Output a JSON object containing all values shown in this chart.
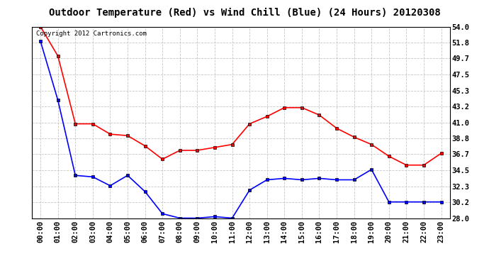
{
  "title": "Outdoor Temperature (Red) vs Wind Chill (Blue) (24 Hours) 20120308",
  "copyright_text": "Copyright 2012 Cartronics.com",
  "x_labels": [
    "00:00",
    "01:00",
    "02:00",
    "03:00",
    "04:00",
    "05:00",
    "06:00",
    "07:00",
    "08:00",
    "09:00",
    "10:00",
    "11:00",
    "12:00",
    "13:00",
    "14:00",
    "15:00",
    "16:00",
    "17:00",
    "18:00",
    "19:00",
    "20:00",
    "21:00",
    "22:00",
    "23:00"
  ],
  "temp_red": [
    54.0,
    50.0,
    40.8,
    40.8,
    39.4,
    39.2,
    37.8,
    36.0,
    37.2,
    37.2,
    37.6,
    38.0,
    40.8,
    41.8,
    43.0,
    43.0,
    42.0,
    40.2,
    39.0,
    38.0,
    36.4,
    35.2,
    35.2,
    36.8
  ],
  "wind_chill_blue": [
    52.0,
    44.0,
    33.8,
    33.6,
    32.4,
    33.8,
    31.6,
    28.6,
    28.0,
    28.0,
    28.2,
    28.0,
    31.8,
    33.2,
    33.4,
    33.2,
    33.4,
    33.2,
    33.2,
    34.6,
    30.2,
    30.2,
    30.2,
    30.2
  ],
  "ylim": [
    28.0,
    54.0
  ],
  "yticks": [
    28.0,
    30.2,
    32.3,
    34.5,
    36.7,
    38.8,
    41.0,
    43.2,
    45.3,
    47.5,
    49.7,
    51.8,
    54.0
  ],
  "bg_color": "#ffffff",
  "grid_color": "#c0c0c0",
  "red_color": "#ff0000",
  "blue_color": "#0000ff",
  "title_fontsize": 10,
  "axis_fontsize": 7.5,
  "copyright_fontsize": 6.5
}
